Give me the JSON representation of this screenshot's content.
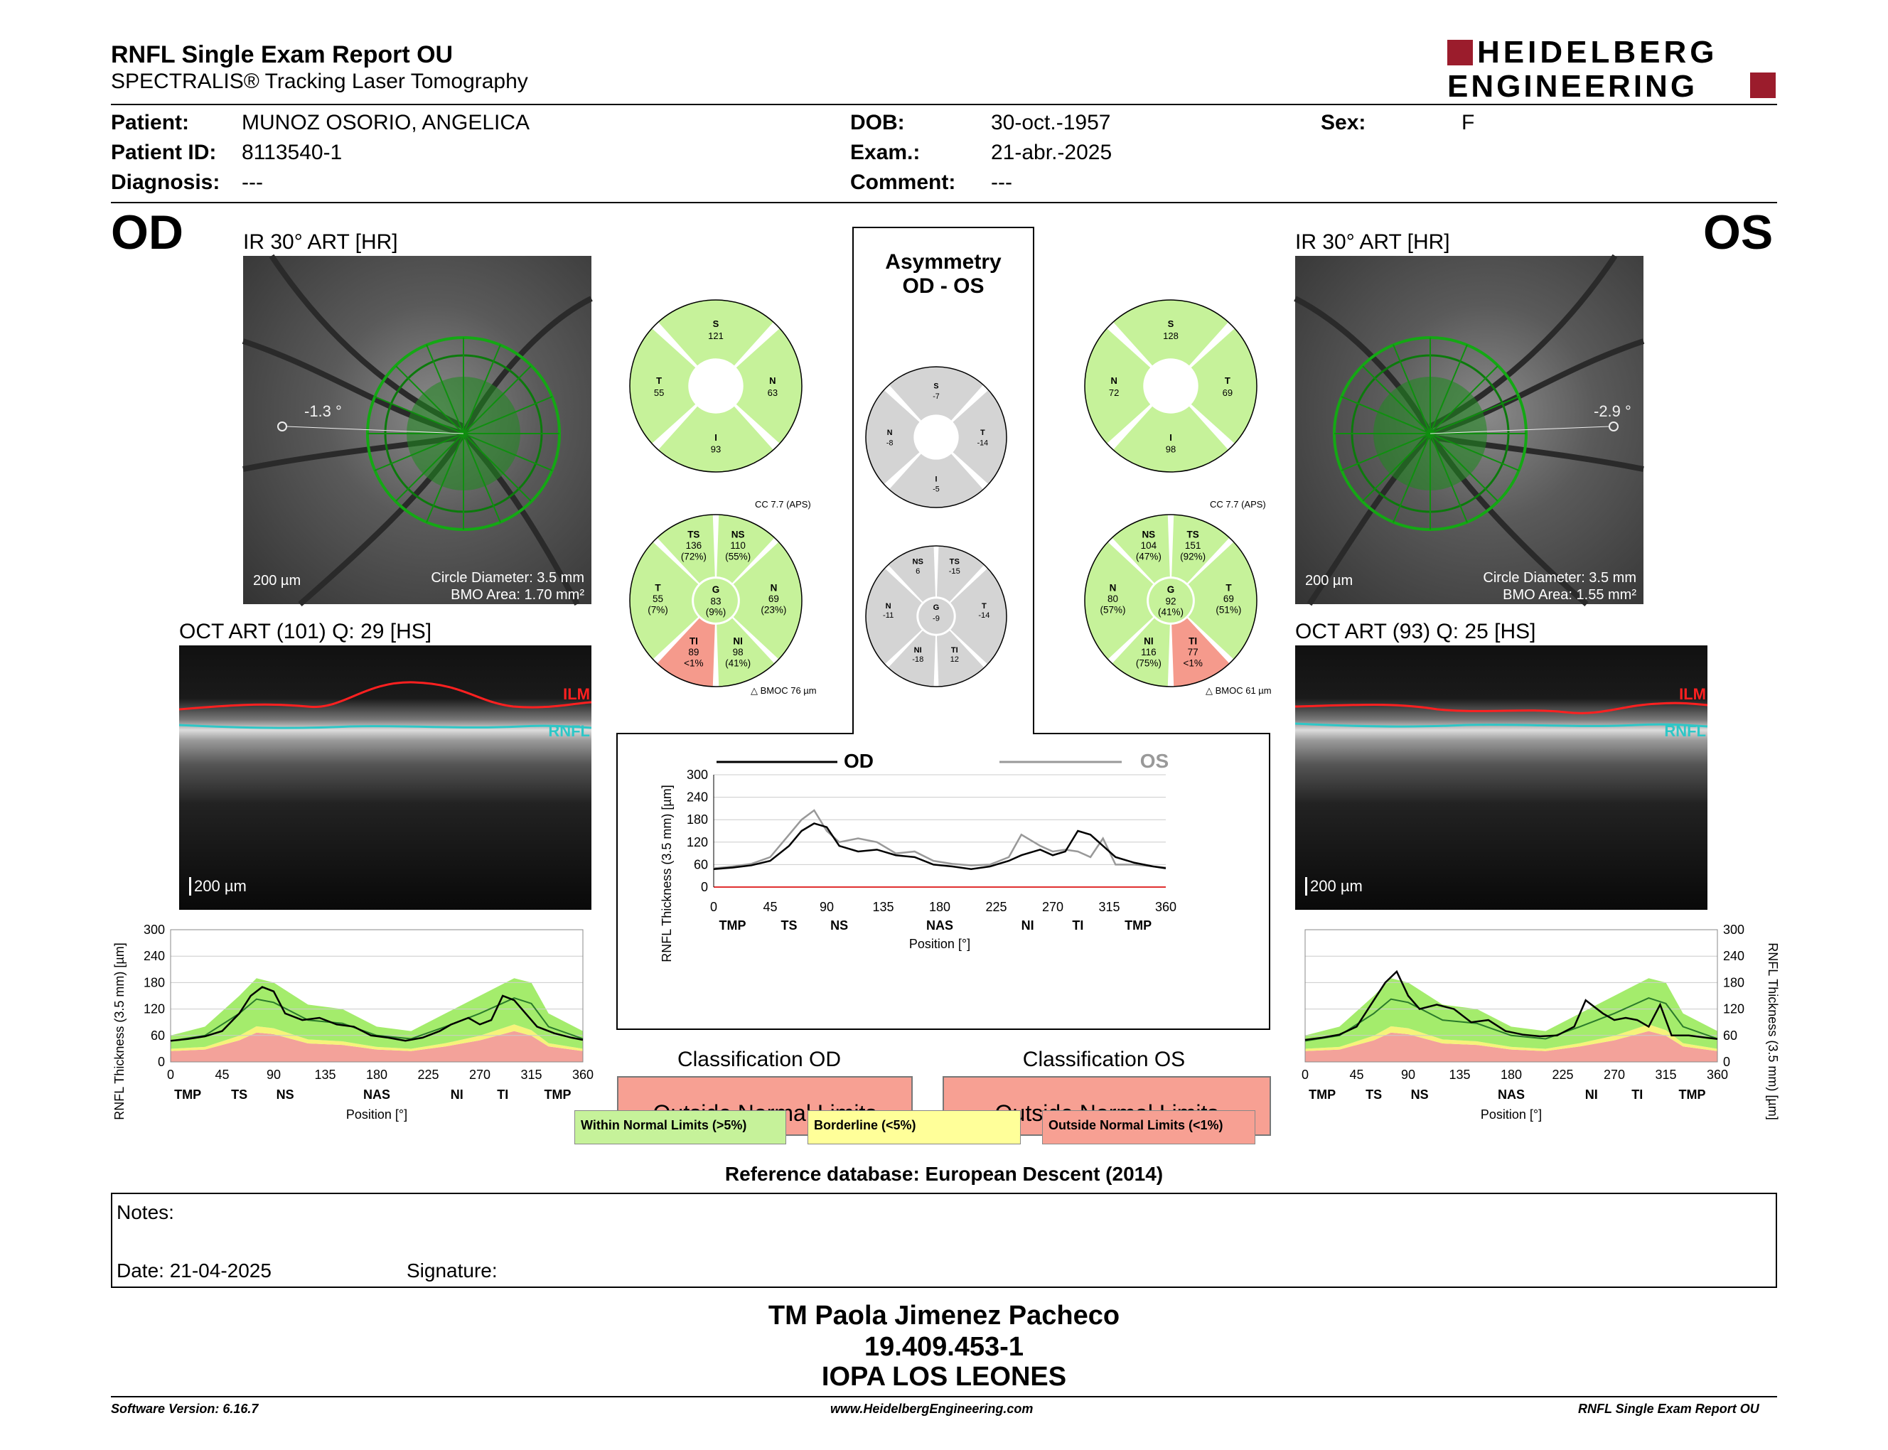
{
  "header": {
    "title": "RNFL Single Exam Report OU",
    "subtitle": "SPECTRALIS® Tracking Laser Tomography",
    "logo_line1": "HEIDELBERG",
    "logo_line2": "ENGINEERING",
    "logo_color": "#9b1c2c"
  },
  "patient": {
    "patient_label": "Patient:",
    "patient_value": "MUNOZ OSORIO, ANGELICA",
    "id_label": "Patient ID:",
    "id_value": "8113540-1",
    "diag_label": "Diagnosis:",
    "diag_value": "---",
    "dob_label": "DOB:",
    "dob_value": "30-oct.-1957",
    "exam_label": "Exam.:",
    "exam_value": "21-abr.-2025",
    "comment_label": "Comment:",
    "comment_value": "---",
    "sex_label": "Sex:",
    "sex_value": "F"
  },
  "od": {
    "eye": "OD",
    "ir_title": "IR 30° ART [HR]",
    "angle": "-1.3 °",
    "scale": "200 µm",
    "circle_diameter": "Circle Diameter: 3.5 mm",
    "bmo_area": "BMO Area: 1.70 mm²",
    "oct_title": "OCT ART (101) Q: 29 [HS]",
    "oct_scale": "200 µm",
    "ilm": "ILM",
    "rnfl": "RNFL",
    "cc": "CC 7.7 (APS)",
    "bmoc": "BMOC 76 µm",
    "quad": {
      "S": "121",
      "T": "55",
      "N": "63",
      "I": "93"
    },
    "sectors": {
      "TS": {
        "v": "136",
        "p": "(72%)"
      },
      "NS": {
        "v": "110",
        "p": "(55%)"
      },
      "T": {
        "v": "55",
        "p": "(7%)"
      },
      "G": {
        "v": "83",
        "p": "(9%)"
      },
      "N": {
        "v": "69",
        "p": "(23%)"
      },
      "TI": {
        "v": "89",
        "p": "<1%"
      },
      "NI": {
        "v": "98",
        "p": "(41%)"
      }
    },
    "classification_title": "Classification OD",
    "classification": "Outside Normal Limits"
  },
  "os": {
    "eye": "OS",
    "ir_title": "IR 30° ART [HR]",
    "angle": "-2.9 °",
    "scale": "200 µm",
    "circle_diameter": "Circle Diameter: 3.5 mm",
    "bmo_area": "BMO Area: 1.55 mm²",
    "oct_title": "OCT ART (93) Q: 25 [HS]",
    "oct_scale": "200 µm",
    "ilm": "ILM",
    "rnfl": "RNFL",
    "cc": "CC 7.7 (APS)",
    "bmoc": "BMOC 61 µm",
    "quad": {
      "S": "128",
      "N": "72",
      "T": "69",
      "I": "98"
    },
    "sectors": {
      "NS": {
        "v": "104",
        "p": "(47%)"
      },
      "TS": {
        "v": "151",
        "p": "(92%)"
      },
      "N": {
        "v": "80",
        "p": "(57%)"
      },
      "G": {
        "v": "92",
        "p": "(41%)"
      },
      "T": {
        "v": "69",
        "p": "(51%)"
      },
      "NI": {
        "v": "116",
        "p": "(75%)"
      },
      "TI": {
        "v": "77",
        "p": "<1%"
      }
    },
    "classification_title": "Classification OS",
    "classification": "Outside Normal Limits"
  },
  "asym": {
    "title1": "Asymmetry",
    "title2": "OD - OS",
    "quad": {
      "S": "-7",
      "N": "-8",
      "T": "-14",
      "I": "-5"
    },
    "sectors": {
      "NS": "6",
      "TS": "-15",
      "N": "-11",
      "G": "-9",
      "T": "-14",
      "NI": "-18",
      "TI": "12"
    }
  },
  "legend": {
    "wnl": "Within Normal Limits (>5%)",
    "bl": "Borderline (<5%)",
    "onl": "Outside Normal Limits (<1%)"
  },
  "colors": {
    "green": "#c6f29a",
    "gray": "#d4d4d4",
    "red": "#f59a8c",
    "yellow": "#ffff99",
    "band_green": "#a4ec6c",
    "band_yellow": "#f6f37a",
    "band_red": "#f3a29a"
  },
  "chart_data": [
    {
      "type": "line",
      "name": "OD profile",
      "ylabel": "RNFL Thickness (3.5 mm) [µm]",
      "xlabel": "Position [°]",
      "xticks": [
        "0",
        "45",
        "90",
        "135",
        "180",
        "225",
        "270",
        "315",
        "360"
      ],
      "yticks": [
        "0",
        "60",
        "120",
        "180",
        "240",
        "300"
      ],
      "regions": [
        "TMP",
        "TS",
        "NS",
        "NAS",
        "NI",
        "TI",
        "TMP"
      ],
      "ylim": [
        0,
        300
      ],
      "xlim": [
        0,
        360
      ],
      "x": [
        0,
        15,
        30,
        45,
        60,
        70,
        80,
        90,
        100,
        115,
        130,
        145,
        160,
        175,
        190,
        205,
        220,
        235,
        245,
        260,
        270,
        280,
        290,
        300,
        310,
        320,
        335,
        350,
        360
      ],
      "od": [
        48,
        52,
        58,
        70,
        110,
        150,
        170,
        160,
        110,
        95,
        100,
        85,
        80,
        60,
        55,
        48,
        55,
        70,
        85,
        100,
        85,
        95,
        150,
        140,
        110,
        80,
        65,
        55,
        50
      ]
    },
    {
      "type": "line",
      "name": "OS profile",
      "ylabel": "RNFL Thickness (3.5 mm) [µm]",
      "xlabel": "Position [°]",
      "xticks": [
        "0",
        "45",
        "90",
        "135",
        "180",
        "225",
        "270",
        "315",
        "360"
      ],
      "yticks": [
        "0",
        "60",
        "120",
        "180",
        "240",
        "300"
      ],
      "regions": [
        "TMP",
        "TS",
        "NS",
        "NAS",
        "NI",
        "TI",
        "TMP"
      ],
      "ylim": [
        0,
        300
      ],
      "xlim": [
        0,
        360
      ],
      "x": [
        0,
        15,
        30,
        45,
        60,
        70,
        80,
        90,
        100,
        115,
        130,
        145,
        160,
        175,
        190,
        205,
        220,
        235,
        245,
        260,
        270,
        280,
        290,
        300,
        310,
        320,
        335,
        350,
        360
      ],
      "os": [
        50,
        55,
        62,
        80,
        140,
        180,
        205,
        150,
        120,
        130,
        120,
        90,
        95,
        70,
        62,
        58,
        60,
        80,
        140,
        110,
        95,
        100,
        95,
        80,
        130,
        60,
        60,
        55,
        52
      ]
    },
    {
      "type": "line",
      "name": "Comparison",
      "ylabel": "RNFL Thickness (3.5 mm) [µm]",
      "xlabel": "Position [°]",
      "legend": [
        "OD",
        "OS"
      ],
      "xticks": [
        "0",
        "45",
        "90",
        "135",
        "180",
        "225",
        "270",
        "315",
        "360"
      ],
      "yticks": [
        "0",
        "60",
        "120",
        "180",
        "240",
        "300"
      ],
      "regions": [
        "TMP",
        "TS",
        "NS",
        "NAS",
        "NI",
        "TI",
        "TMP"
      ],
      "ylim": [
        0,
        300
      ],
      "xlim": [
        0,
        360
      ]
    }
  ],
  "footer_section": {
    "refdb": "Reference database: European Descent (2014)",
    "notes": "Notes:",
    "date": "Date: 21-04-2025",
    "signature": "Signature:",
    "name": "TM Paola Jimenez Pacheco",
    "rut": "19.409.453-1",
    "org": "IOPA LOS LEONES",
    "software": "Software Version: 6.16.7",
    "web": "www.HeidelbergEngineering.com",
    "report": "RNFL Single Exam Report OU"
  }
}
